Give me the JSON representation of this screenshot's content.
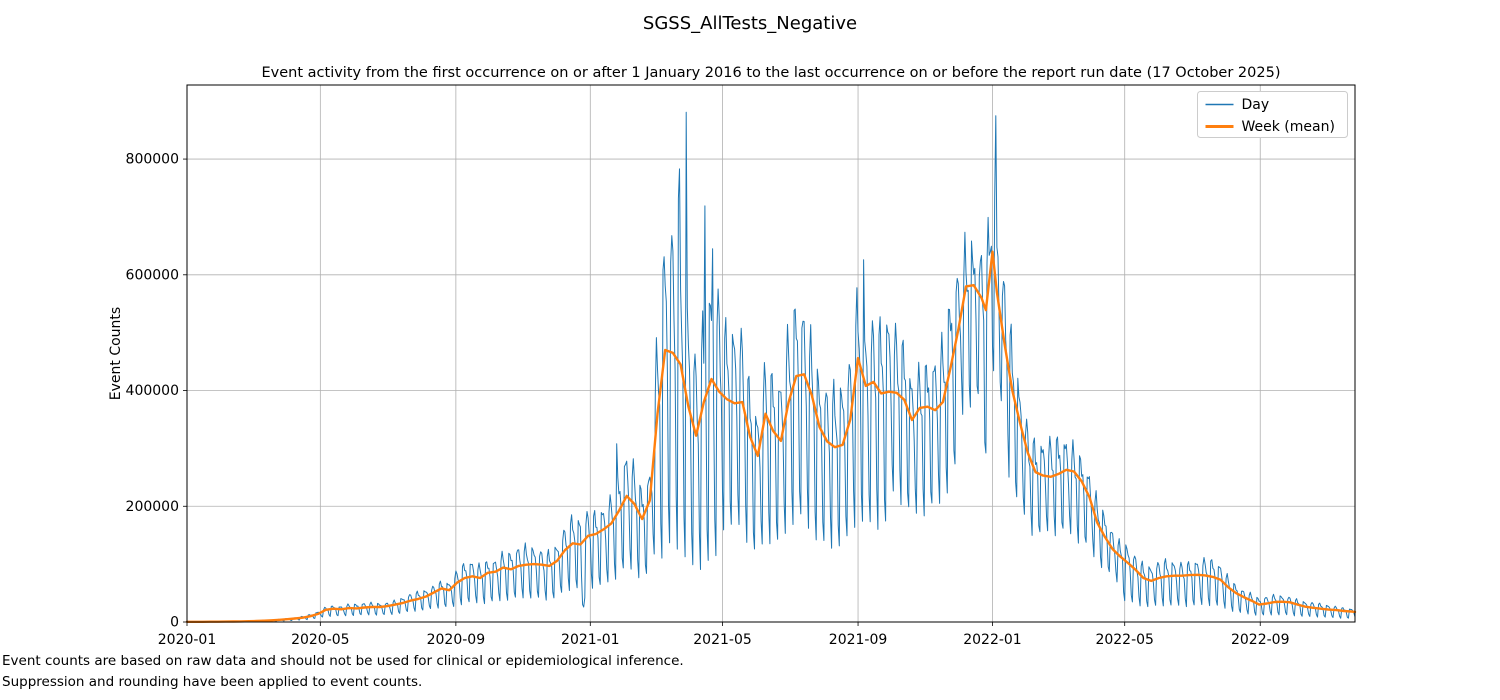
{
  "figure": {
    "title": "SGSS_AllTests_Negative",
    "axes_title": "Event activity from the first occurrence on or after 1 January 2016 to the last occurrence on or before the report run date (17 October 2025)",
    "ylabel": "Event Counts",
    "footnote_line1": "Event counts are based on raw data and should not be used for clinical or epidemiological inference.",
    "footnote_line2": "Suppression and rounding have been applied to event counts.",
    "legend": [
      {
        "label": "Day",
        "color": "#1f77b4",
        "line_width": 1.5
      },
      {
        "label": "Week (mean)",
        "color": "#ff7f0e",
        "line_width": 3
      }
    ]
  },
  "chart_data": {
    "type": "line",
    "title": "SGSS_AllTests_Negative",
    "subtitle": "Event activity from the first occurrence on or after 1 January 2016 to the last occurrence on or before the report run date (17 October 2025)",
    "xlabel": "",
    "ylabel": "Event Counts",
    "grid": true,
    "legend_position": "upper right",
    "background": "#ffffff",
    "grid_color": "#b0b0b0",
    "start_date": "2020-01-01",
    "xlim_days": [
      0,
      1060
    ],
    "ylim": [
      0,
      928000
    ],
    "y_ticks": [
      0,
      200000,
      400000,
      600000,
      800000
    ],
    "x_ticks": [
      {
        "day": 0,
        "label": "2020-01"
      },
      {
        "day": 121,
        "label": "2020-05"
      },
      {
        "day": 244,
        "label": "2020-09"
      },
      {
        "day": 366,
        "label": "2021-01"
      },
      {
        "day": 486,
        "label": "2021-05"
      },
      {
        "day": 609,
        "label": "2021-09"
      },
      {
        "day": 731,
        "label": "2022-01"
      },
      {
        "day": 851,
        "label": "2022-05"
      },
      {
        "day": 974,
        "label": "2022-09"
      }
    ],
    "series": [
      {
        "name": "Day",
        "color": "#1f77b4",
        "line_width": 1,
        "derived_daily_model": {
          "weekday_factors_mon_to_sun": [
            1.22,
            1.28,
            1.18,
            1.08,
            0.95,
            0.55,
            0.42
          ],
          "day0_weekday": "Wednesday",
          "amplitude_windows": [
            [
              0,
              240,
              0.9,
              0.9
            ],
            [
              240,
              425,
              1.0,
              1.0
            ],
            [
              425,
              485,
              1.55,
              1.25
            ],
            [
              485,
              640,
              1.0,
              1.0
            ],
            [
              640,
              700,
              0.8,
              0.8
            ],
            [
              700,
              742,
              0.55,
              0.55
            ],
            [
              742,
              850,
              0.7,
              0.7
            ],
            [
              850,
              1061,
              1.1,
              1.1
            ]
          ],
          "override_days": [
            [
              358,
              80000
            ],
            [
              359,
              30000
            ],
            [
              360,
              26000
            ],
            [
              361,
              42000
            ],
            [
              390,
              308000
            ],
            [
              446,
              732000
            ],
            [
              447,
              783000
            ],
            [
              453,
              881000
            ],
            [
              470,
              719000
            ],
            [
              477,
              645000
            ],
            [
              614,
              626000
            ],
            [
              724,
              310000
            ],
            [
              725,
              292000
            ],
            [
              734,
              875000
            ]
          ],
          "texture": {
            "amp1": 0.05,
            "freq1": 2.11,
            "phase1": 1,
            "amp2": 0.04,
            "freq2": 0.13,
            "phase2": 0
          }
        }
      },
      {
        "name": "Week (mean)",
        "color": "#ff7f0e",
        "line_width": 2.4,
        "points_day_value": [
          [
            0,
            300
          ],
          [
            7,
            300
          ],
          [
            14,
            400
          ],
          [
            21,
            500
          ],
          [
            28,
            600
          ],
          [
            35,
            700
          ],
          [
            42,
            900
          ],
          [
            49,
            1100
          ],
          [
            56,
            1400
          ],
          [
            63,
            1800
          ],
          [
            70,
            2300
          ],
          [
            77,
            3000
          ],
          [
            84,
            3800
          ],
          [
            91,
            4800
          ],
          [
            98,
            6000
          ],
          [
            105,
            7500
          ],
          [
            112,
            10000
          ],
          [
            119,
            14000
          ],
          [
            126,
            21000
          ],
          [
            133,
            23000
          ],
          [
            140,
            22000
          ],
          [
            147,
            24000
          ],
          [
            154,
            23500
          ],
          [
            161,
            25000
          ],
          [
            168,
            26000
          ],
          [
            175,
            26000
          ],
          [
            182,
            27500
          ],
          [
            189,
            30000
          ],
          [
            196,
            33000
          ],
          [
            203,
            37000
          ],
          [
            210,
            40000
          ],
          [
            217,
            44000
          ],
          [
            224,
            51000
          ],
          [
            231,
            58000
          ],
          [
            238,
            55000
          ],
          [
            245,
            68000
          ],
          [
            252,
            76000
          ],
          [
            259,
            79000
          ],
          [
            266,
            76000
          ],
          [
            273,
            85000
          ],
          [
            280,
            87000
          ],
          [
            287,
            94000
          ],
          [
            294,
            91000
          ],
          [
            301,
            97000
          ],
          [
            308,
            99000
          ],
          [
            315,
            100000
          ],
          [
            322,
            99000
          ],
          [
            329,
            97000
          ],
          [
            336,
            106000
          ],
          [
            343,
            124000
          ],
          [
            350,
            136000
          ],
          [
            357,
            134000
          ],
          [
            364,
            149000
          ],
          [
            371,
            152000
          ],
          [
            378,
            160000
          ],
          [
            385,
            170000
          ],
          [
            392,
            192000
          ],
          [
            399,
            218000
          ],
          [
            406,
            204000
          ],
          [
            413,
            178000
          ],
          [
            420,
            210000
          ],
          [
            427,
            360000
          ],
          [
            434,
            470000
          ],
          [
            441,
            465000
          ],
          [
            448,
            445000
          ],
          [
            455,
            372000
          ],
          [
            462,
            322000
          ],
          [
            469,
            380000
          ],
          [
            476,
            420000
          ],
          [
            483,
            398000
          ],
          [
            490,
            385000
          ],
          [
            497,
            378000
          ],
          [
            504,
            380000
          ],
          [
            511,
            320000
          ],
          [
            518,
            287000
          ],
          [
            525,
            360000
          ],
          [
            532,
            330000
          ],
          [
            539,
            313000
          ],
          [
            546,
            380000
          ],
          [
            553,
            425000
          ],
          [
            560,
            428000
          ],
          [
            567,
            392000
          ],
          [
            574,
            337000
          ],
          [
            581,
            312000
          ],
          [
            588,
            302000
          ],
          [
            595,
            306000
          ],
          [
            602,
            350000
          ],
          [
            609,
            456000
          ],
          [
            616,
            408000
          ],
          [
            623,
            415000
          ],
          [
            630,
            395000
          ],
          [
            637,
            398000
          ],
          [
            644,
            396000
          ],
          [
            651,
            384000
          ],
          [
            658,
            349000
          ],
          [
            665,
            370000
          ],
          [
            672,
            372000
          ],
          [
            679,
            366000
          ],
          [
            686,
            380000
          ],
          [
            693,
            440000
          ],
          [
            700,
            505000
          ],
          [
            707,
            580000
          ],
          [
            714,
            582000
          ],
          [
            721,
            560000
          ],
          [
            725,
            539000
          ],
          [
            731,
            640000
          ],
          [
            735,
            570000
          ],
          [
            742,
            480000
          ],
          [
            749,
            400000
          ],
          [
            756,
            344000
          ],
          [
            763,
            293000
          ],
          [
            770,
            259000
          ],
          [
            777,
            253000
          ],
          [
            784,
            251000
          ],
          [
            791,
            256000
          ],
          [
            798,
            263000
          ],
          [
            805,
            260000
          ],
          [
            812,
            243000
          ],
          [
            819,
            216000
          ],
          [
            826,
            172000
          ],
          [
            833,
            147000
          ],
          [
            840,
            126000
          ],
          [
            847,
            113000
          ],
          [
            854,
            102000
          ],
          [
            861,
            90000
          ],
          [
            868,
            76000
          ],
          [
            875,
            71000
          ],
          [
            882,
            76000
          ],
          [
            889,
            79000
          ],
          [
            896,
            80000
          ],
          [
            903,
            80000
          ],
          [
            910,
            81000
          ],
          [
            917,
            81500
          ],
          [
            924,
            80500
          ],
          [
            931,
            78000
          ],
          [
            938,
            73000
          ],
          [
            945,
            60000
          ],
          [
            952,
            50000
          ],
          [
            959,
            43000
          ],
          [
            966,
            37000
          ],
          [
            973,
            30000
          ],
          [
            980,
            32000
          ],
          [
            987,
            34500
          ],
          [
            994,
            35000
          ],
          [
            1001,
            34000
          ],
          [
            1008,
            30000
          ],
          [
            1015,
            26500
          ],
          [
            1022,
            24500
          ],
          [
            1029,
            23000
          ],
          [
            1036,
            21500
          ],
          [
            1043,
            20500
          ],
          [
            1050,
            19000
          ],
          [
            1057,
            18000
          ],
          [
            1060,
            17500
          ]
        ]
      }
    ]
  }
}
